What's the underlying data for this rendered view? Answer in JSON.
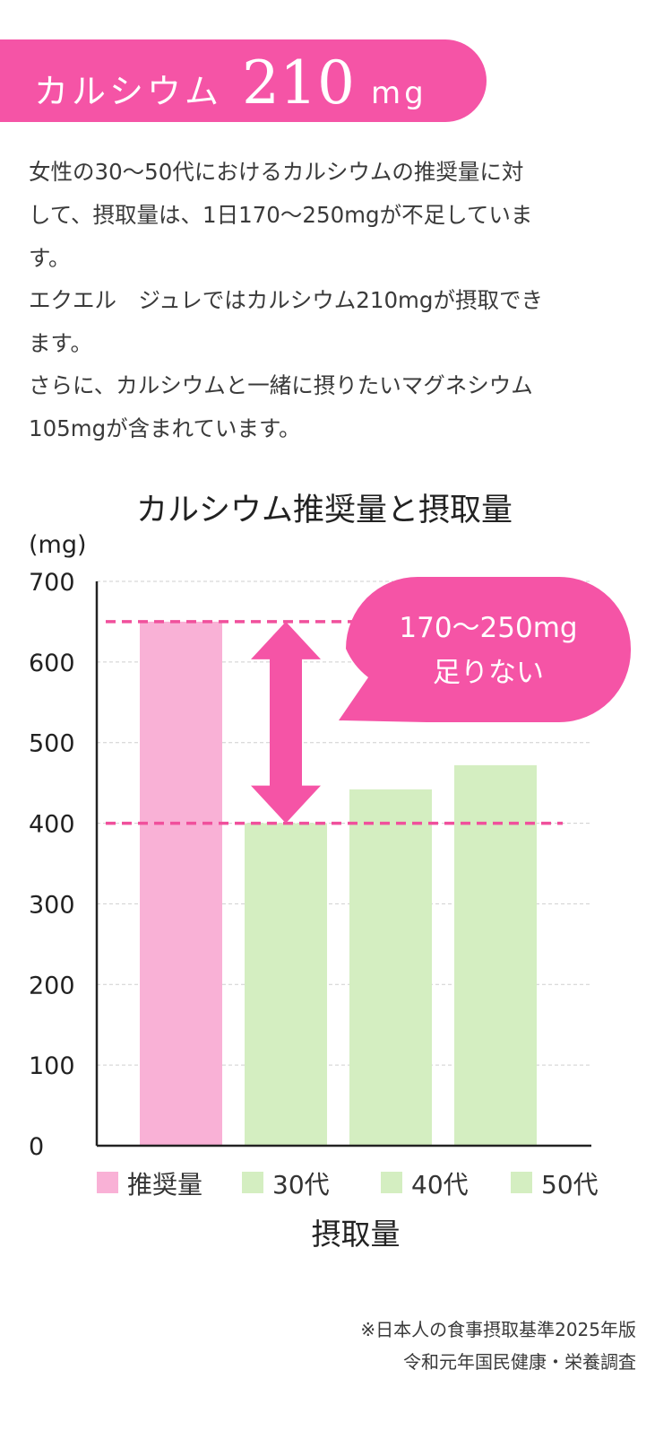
{
  "banner": {
    "label": "カルシウム",
    "amount": "210",
    "unit": "mg"
  },
  "paragraphs": [
    "女性の30〜50代におけるカルシウムの推奨量に対",
    "して、摂取量は、1日170〜250mgが不足していま",
    "す。",
    "エクエル　ジュレではカルシウム210mgが摂取でき",
    "ます。",
    "さらに、カルシウムと一緒に摂りたいマグネシウム",
    "105mgが含まれています。"
  ],
  "chart_data": {
    "type": "bar",
    "title": "カルシウム推奨量と摂取量",
    "ylabel": "(mg)",
    "xlabel": "摂取量",
    "ylim": [
      0,
      700
    ],
    "yticks": [
      0,
      100,
      200,
      300,
      400,
      500,
      600,
      700
    ],
    "categories": [
      "推奨量",
      "30代",
      "40代",
      "50代"
    ],
    "values": [
      650,
      400,
      442,
      472
    ],
    "bar_colors": [
      "#f9b1d6",
      "#d4eec1",
      "#d4eec1",
      "#d4eec1"
    ],
    "reference_lines": [
      650,
      400
    ],
    "reference_color": "#f0509c",
    "grid": true,
    "legend_position": "bottom",
    "callout": {
      "line1": "170〜250mg",
      "line2": "足りない",
      "color": "#f554a6"
    }
  },
  "source": {
    "line1": "※日本人の食事摂取基準2025年版",
    "line2": "令和元年国民健康・栄養調査"
  }
}
